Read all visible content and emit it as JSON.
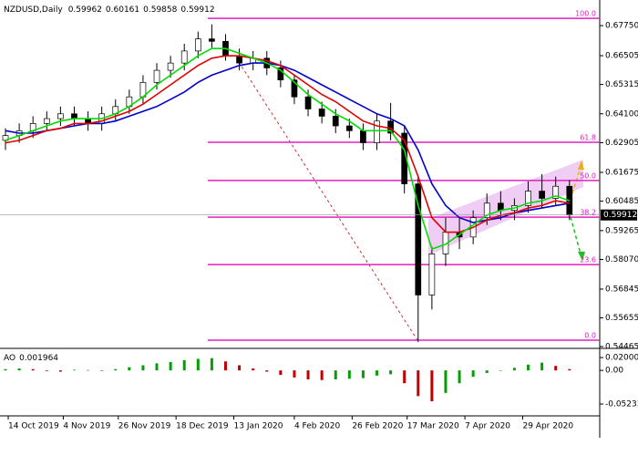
{
  "chart_data": [
    {
      "type": "candlestick",
      "title": "NZDUSD,Daily",
      "header_values": [
        0.59962,
        0.60161,
        0.59858,
        0.59912
      ],
      "last_price": 0.59912,
      "x": [
        0,
        5,
        10,
        15,
        20,
        25,
        30,
        35,
        40,
        45,
        50,
        55,
        60,
        65,
        70,
        75,
        80,
        85,
        90,
        95,
        100,
        105,
        110,
        115,
        120,
        125,
        130,
        135,
        140,
        145,
        150,
        155,
        160,
        165,
        170,
        175,
        180,
        185,
        190,
        195,
        200,
        205
      ],
      "open": [
        0.63,
        0.632,
        0.634,
        0.637,
        0.639,
        0.641,
        0.639,
        0.637,
        0.641,
        0.644,
        0.648,
        0.654,
        0.659,
        0.662,
        0.667,
        0.672,
        0.671,
        0.665,
        0.662,
        0.664,
        0.66,
        0.655,
        0.648,
        0.643,
        0.64,
        0.636,
        0.634,
        0.629,
        0.638,
        0.633,
        0.612,
        0.566,
        0.583,
        0.592,
        0.59,
        0.598,
        0.604,
        0.601,
        0.603,
        0.609,
        0.606,
        0.611
      ],
      "high": [
        0.635,
        0.637,
        0.64,
        0.642,
        0.644,
        0.644,
        0.642,
        0.644,
        0.647,
        0.651,
        0.657,
        0.662,
        0.665,
        0.67,
        0.675,
        0.678,
        0.674,
        0.668,
        0.667,
        0.667,
        0.663,
        0.657,
        0.651,
        0.646,
        0.643,
        0.639,
        0.637,
        0.641,
        0.6455,
        0.636,
        0.615,
        0.586,
        0.598,
        0.598,
        0.601,
        0.608,
        0.609,
        0.606,
        0.613,
        0.616,
        0.615,
        0.6135
      ],
      "low": [
        0.626,
        0.629,
        0.631,
        0.634,
        0.636,
        0.636,
        0.634,
        0.634,
        0.638,
        0.641,
        0.645,
        0.651,
        0.656,
        0.659,
        0.664,
        0.668,
        0.663,
        0.659,
        0.659,
        0.657,
        0.652,
        0.645,
        0.64,
        0.637,
        0.633,
        0.631,
        0.626,
        0.626,
        0.63,
        0.608,
        0.5465,
        0.56,
        0.578,
        0.585,
        0.587,
        0.595,
        0.597,
        0.597,
        0.6,
        0.602,
        0.603,
        0.597
      ],
      "close": [
        0.632,
        0.634,
        0.637,
        0.639,
        0.641,
        0.639,
        0.637,
        0.641,
        0.644,
        0.648,
        0.654,
        0.659,
        0.662,
        0.667,
        0.672,
        0.671,
        0.665,
        0.662,
        0.664,
        0.66,
        0.655,
        0.648,
        0.643,
        0.64,
        0.636,
        0.634,
        0.629,
        0.638,
        0.633,
        0.612,
        0.566,
        0.583,
        0.592,
        0.59,
        0.598,
        0.604,
        0.601,
        0.603,
        0.609,
        0.606,
        0.611,
        0.59912
      ],
      "up_color": "#ffffff",
      "down_color": "#000000",
      "series": [
        {
          "color": "#0000c8",
          "values": [
            0.634,
            0.633,
            0.633,
            0.634,
            0.635,
            0.636,
            0.637,
            0.637,
            0.638,
            0.64,
            0.642,
            0.644,
            0.647,
            0.65,
            0.654,
            0.657,
            0.659,
            0.661,
            0.662,
            0.662,
            0.661,
            0.659,
            0.656,
            0.653,
            0.65,
            0.647,
            0.644,
            0.641,
            0.639,
            0.636,
            0.626,
            0.612,
            0.603,
            0.598,
            0.596,
            0.597,
            0.598,
            0.6,
            0.601,
            0.602,
            0.603,
            0.604
          ]
        },
        {
          "color": "#e00000",
          "values": [
            0.629,
            0.63,
            0.632,
            0.634,
            0.635,
            0.637,
            0.637,
            0.638,
            0.64,
            0.642,
            0.645,
            0.649,
            0.653,
            0.657,
            0.661,
            0.664,
            0.665,
            0.665,
            0.664,
            0.663,
            0.661,
            0.657,
            0.653,
            0.649,
            0.646,
            0.642,
            0.638,
            0.636,
            0.635,
            0.63,
            0.615,
            0.598,
            0.592,
            0.592,
            0.594,
            0.597,
            0.599,
            0.6,
            0.602,
            0.603,
            0.605,
            0.604
          ]
        },
        {
          "color": "#00dd00",
          "values": [
            0.63,
            0.632,
            0.634,
            0.636,
            0.638,
            0.639,
            0.639,
            0.639,
            0.641,
            0.644,
            0.648,
            0.653,
            0.657,
            0.661,
            0.665,
            0.668,
            0.668,
            0.666,
            0.664,
            0.662,
            0.659,
            0.654,
            0.649,
            0.645,
            0.641,
            0.638,
            0.634,
            0.634,
            0.634,
            0.626,
            0.603,
            0.585,
            0.587,
            0.591,
            0.595,
            0.599,
            0.601,
            0.602,
            0.604,
            0.605,
            0.607,
            0.605
          ]
        }
      ],
      "fib_color": "#e020c0",
      "fib_levels": [
        {
          "label": "100.0",
          "price": 0.6805
        },
        {
          "label": "61.8",
          "price": 0.6292
        },
        {
          "label": "50.0",
          "price": 0.6134
        },
        {
          "label": "38.2",
          "price": 0.5982
        },
        {
          "label": "23.6",
          "price": 0.5786
        },
        {
          "label": "0.0",
          "price": 0.5473
        }
      ],
      "xlim": [
        -1,
        216
      ],
      "ylim": [
        0.5439,
        0.6881
      ],
      "yticks": [
        {
          "value": 0.6775,
          "label": "0.67750"
        },
        0.66505,
        0.65315,
        {
          "value": 0.641,
          "label": "0.64100"
        },
        0.62905,
        0.61675,
        0.60485,
        0.59265,
        {
          "value": 0.5807,
          "label": "0.58070"
        },
        0.56845,
        0.55655,
        0.54465
      ],
      "xticks": [
        {
          "value": 1,
          "label": "14 Oct 2019"
        },
        {
          "value": 21,
          "label": "4 Nov 2019"
        },
        {
          "value": 41,
          "label": "26 Nov 2019"
        },
        {
          "value": 62,
          "label": "18 Dec 2019"
        },
        {
          "value": 83,
          "label": "13 Jan 2020"
        },
        {
          "value": 105,
          "label": "4 Feb 2020"
        },
        {
          "value": 126,
          "label": "26 Feb 2020"
        },
        {
          "value": 146,
          "label": "17 Mar 2020"
        },
        {
          "value": 167,
          "label": "7 Apr 2020"
        },
        {
          "value": 188,
          "label": "29 Apr 2020"
        }
      ]
    },
    {
      "type": "histogram_ao",
      "title": "AO",
      "current": 0.001964,
      "up_color": "#00a000",
      "down_color": "#c00000",
      "values": [
        0.002,
        0.003,
        0.002,
        -0.001,
        -0.002,
        0.001,
        0.0005,
        0.0,
        0.002,
        0.005,
        0.008,
        0.011,
        0.013,
        0.016,
        0.018,
        0.019,
        0.014,
        0.008,
        0.003,
        -0.002,
        -0.007,
        -0.011,
        -0.014,
        -0.015,
        -0.014,
        -0.013,
        -0.012,
        -0.008,
        -0.006,
        -0.02,
        -0.04,
        -0.048,
        -0.035,
        -0.02,
        -0.01,
        -0.004,
        0.0,
        0.004,
        0.009,
        0.012,
        0.007,
        0.002
      ],
      "ylim": [
        -0.0693,
        0.0314
      ],
      "yticks": [
        0.020001,
        {
          "value": 0,
          "label": "0.00"
        },
        -0.05233
      ]
    }
  ]
}
